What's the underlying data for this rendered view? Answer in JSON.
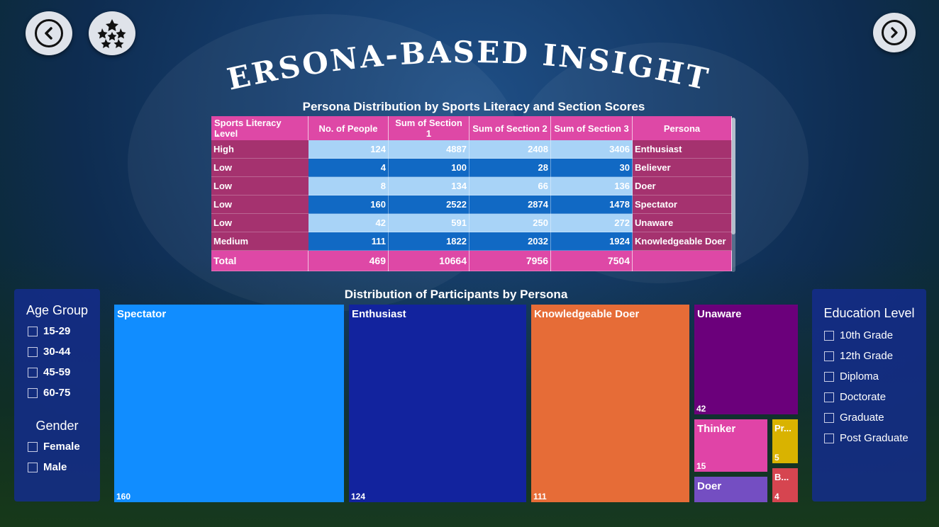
{
  "page": {
    "title": "PERSONA-BASED INSIGHTS"
  },
  "nav": {
    "back_icon": "chevron-left-icon",
    "home_icon": "soccer-ball-icon",
    "next_icon": "chevron-right-icon"
  },
  "table": {
    "title": "Persona Distribution by Sports Literacy and Section Scores",
    "columns": [
      "Sports Literacy Level",
      "No. of People",
      "Sum of Section 1",
      "Sum of Section 2",
      "Sum of Section 3",
      "Persona"
    ],
    "rows": [
      {
        "level": "High",
        "people": "124",
        "s1": "4887",
        "s2": "2408",
        "s3": "3406",
        "persona": "Enthusiast"
      },
      {
        "level": "Low",
        "people": "4",
        "s1": "100",
        "s2": "28",
        "s3": "30",
        "persona": "Believer"
      },
      {
        "level": "Low",
        "people": "8",
        "s1": "134",
        "s2": "66",
        "s3": "136",
        "persona": "Doer"
      },
      {
        "level": "Low",
        "people": "160",
        "s1": "2522",
        "s2": "2874",
        "s3": "1478",
        "persona": "Spectator"
      },
      {
        "level": "Low",
        "people": "42",
        "s1": "591",
        "s2": "250",
        "s3": "272",
        "persona": "Unaware"
      },
      {
        "level": "Medium",
        "people": "111",
        "s1": "1822",
        "s2": "2032",
        "s3": "1924",
        "persona": "Knowledgeable Doer"
      }
    ],
    "total": {
      "label": "Total",
      "people": "469",
      "s1": "10664",
      "s2": "7956",
      "s3": "7504",
      "persona": ""
    }
  },
  "treemap": {
    "title": "Distribution of Participants by Persona",
    "tiles": [
      {
        "label": "Spectator",
        "value": "160",
        "color": "#118dff"
      },
      {
        "label": "Enthusiast",
        "value": "124",
        "color": "#12239e"
      },
      {
        "label": "Knowledgeable Doer",
        "value": "111",
        "color": "#e66c37"
      },
      {
        "label": "Unaware",
        "value": "42",
        "color": "#6b007b"
      },
      {
        "label": "Thinker",
        "value": "15",
        "color": "#e044a7"
      },
      {
        "label": "Pr...",
        "value": "5",
        "color": "#d9b300"
      },
      {
        "label": "Doer",
        "value": "",
        "color": "#744ec2"
      },
      {
        "label": "B...",
        "value": "4",
        "color": "#d64550"
      }
    ]
  },
  "filters": {
    "age": {
      "title": "Age Group",
      "options": [
        "15-29",
        "30-44",
        "45-59",
        "60-75"
      ]
    },
    "gender": {
      "title": "Gender",
      "options": [
        "Female",
        "Male"
      ]
    },
    "education": {
      "title": "Education Level",
      "options": [
        "10th Grade",
        "12th Grade",
        "Diploma",
        "Doctorate",
        "Graduate",
        "Post Graduate"
      ]
    }
  }
}
